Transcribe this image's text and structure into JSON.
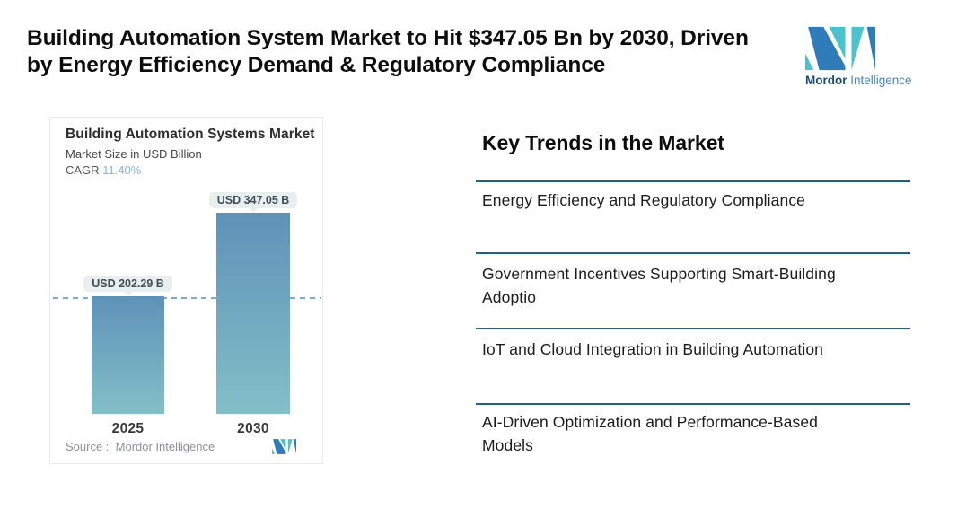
{
  "header": {
    "title": "Building Automation System Market to Hit $347.05 Bn by 2030, Driven\nby Energy Efficiency Demand & Regulatory Compliance",
    "brand_bold": "Mordor",
    "brand_regular": " Intelligence"
  },
  "chart_data": {
    "type": "bar",
    "title": "Building Automation Systems Market",
    "subtitle": "Market Size in USD Billion",
    "cagr_label": "CAGR",
    "cagr": "11.40%",
    "categories": [
      "2025",
      "2030"
    ],
    "values": [
      202.29,
      347.05
    ],
    "value_labels": [
      "USD 202.29 B",
      "USD 347.05 B"
    ],
    "ylabel": "USD Billion",
    "ylim": [
      0,
      347.05
    ],
    "reference_line": 202.29,
    "grid": "off",
    "legend": "none",
    "source": "Source :  Mordor Intelligence"
  },
  "trends": {
    "heading": "Key Trends in the Market",
    "items": [
      "Energy Efficiency and Regulatory Compliance",
      "Government Incentives Supporting Smart-Building\nAdoptio",
      "IoT and Cloud Integration in Building Automation",
      "AI-Driven Optimization and Performance-Based\nModels"
    ]
  },
  "colors": {
    "bar_top": "#5e92b8",
    "bar_bottom": "#83bfc8",
    "dashed_line": "#79a9d4",
    "rule": "#1f6087",
    "pill_bg": "#e9efee",
    "logo_teal": "#4cc2cd",
    "logo_blue": "#2f7cb8",
    "brand_dark": "#1b4e74",
    "brand_blue": "#3f87c5"
  }
}
